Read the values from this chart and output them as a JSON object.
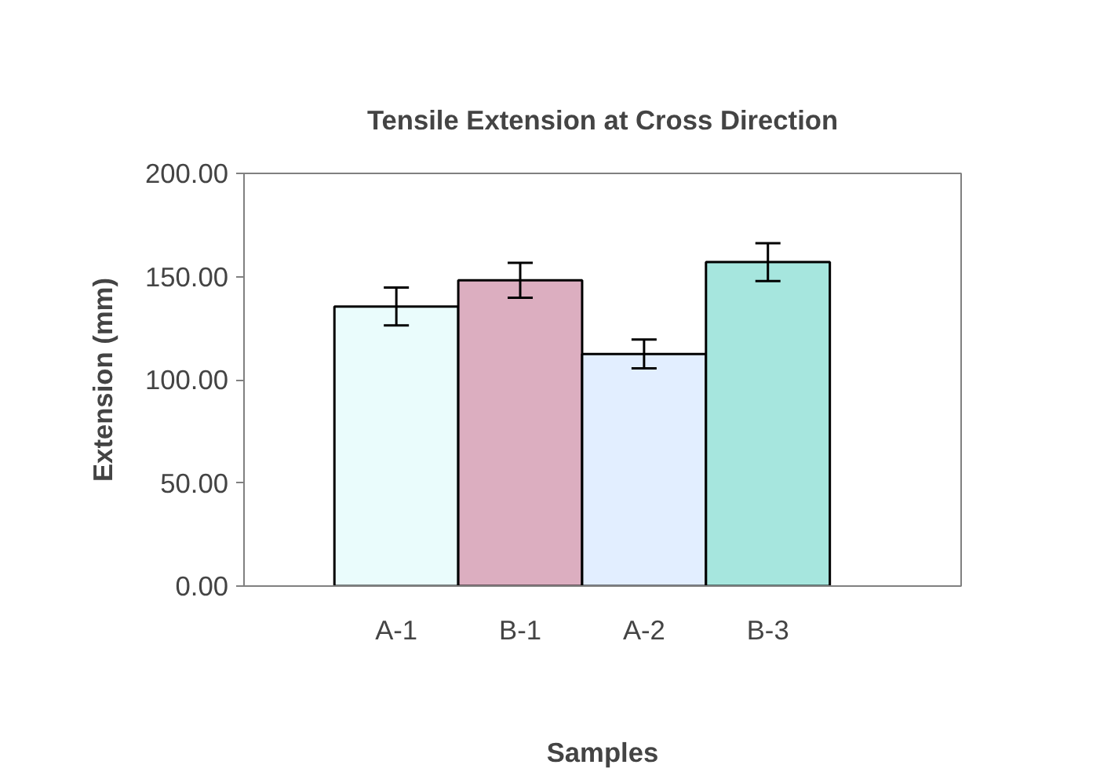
{
  "chart_data": {
    "type": "bar",
    "title": "Tensile Extension at Cross Direction",
    "xlabel": "Samples",
    "ylabel": "Extension (mm)",
    "categories": [
      "A-1",
      "B-1",
      "A-2",
      "B-3"
    ],
    "values": [
      135.5,
      148.2,
      112.5,
      157.0
    ],
    "errors": [
      9.2,
      8.5,
      7.0,
      9.2
    ],
    "colors": [
      "#eafcfc",
      "#dcaec0",
      "#e2eeff",
      "#a6e6de"
    ],
    "ylim": [
      0,
      200
    ],
    "yticks": [
      {
        "value": 0,
        "label": "0.00"
      },
      {
        "value": 50,
        "label": "50.00"
      },
      {
        "value": 100,
        "label": "100.00"
      },
      {
        "value": 150,
        "label": "150.00"
      },
      {
        "value": 200,
        "label": "200.00"
      }
    ],
    "grid": false
  }
}
